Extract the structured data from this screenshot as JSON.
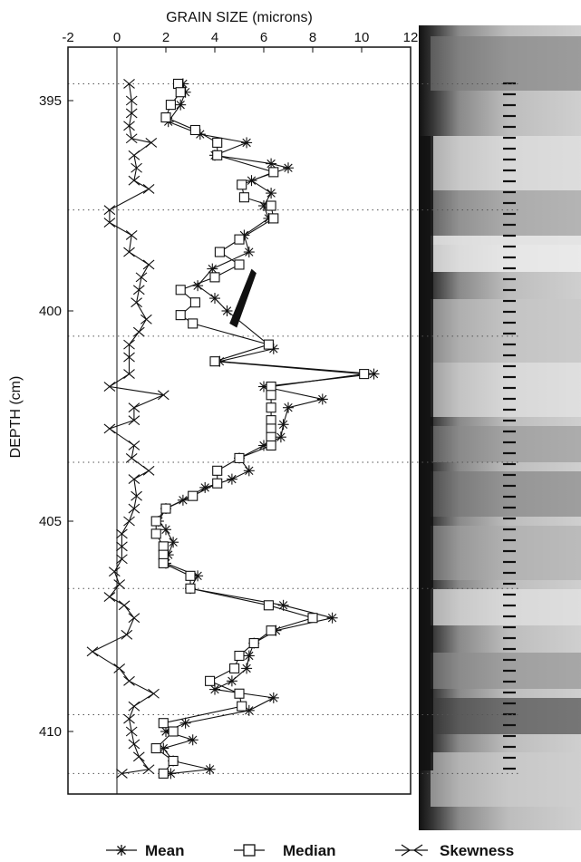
{
  "chart_data": {
    "type": "line",
    "title": "GRAIN SIZE  (microns)",
    "xlabel": "GRAIN SIZE  (microns)",
    "ylabel": "DEPTH (cm)",
    "xlim": [
      -2,
      12
    ],
    "ylim": [
      394.3,
      411.2
    ],
    "x_ticks": [
      "-2",
      "0",
      "2",
      "4",
      "6",
      "8",
      "10",
      "12"
    ],
    "y_ticks": [
      "395",
      "400",
      "405",
      "410"
    ],
    "y_inverted": true,
    "grid": "dotted horizontal lines at selected depths",
    "legend_position": "bottom",
    "series": [
      {
        "name": "Mean",
        "marker": "asterisk",
        "points": [
          [
            2.7,
            394.6
          ],
          [
            2.8,
            394.8
          ],
          [
            2.6,
            395.1
          ],
          [
            2.1,
            395.5
          ],
          [
            3.4,
            395.8
          ],
          [
            5.3,
            396.0
          ],
          [
            4.0,
            396.3
          ],
          [
            6.3,
            396.5
          ],
          [
            7.0,
            396.6
          ],
          [
            5.5,
            396.9
          ],
          [
            6.3,
            397.2
          ],
          [
            6.0,
            397.5
          ],
          [
            6.2,
            397.8
          ],
          [
            5.2,
            398.2
          ],
          [
            5.4,
            398.6
          ],
          [
            3.9,
            399.0
          ],
          [
            3.3,
            399.4
          ],
          [
            4.0,
            399.7
          ],
          [
            4.5,
            400.0
          ],
          [
            6.4,
            400.9
          ],
          [
            4.2,
            401.2
          ],
          [
            10.5,
            401.5
          ],
          [
            6.0,
            401.8
          ],
          [
            8.4,
            402.1
          ],
          [
            7.0,
            402.3
          ],
          [
            6.8,
            402.7
          ],
          [
            6.7,
            403.0
          ],
          [
            6.0,
            403.2
          ],
          [
            5.0,
            403.5
          ],
          [
            5.4,
            403.8
          ],
          [
            4.7,
            404.0
          ],
          [
            3.6,
            404.2
          ],
          [
            2.7,
            404.5
          ],
          [
            2.0,
            404.7
          ],
          [
            1.7,
            405.0
          ],
          [
            2.0,
            405.2
          ],
          [
            2.3,
            405.5
          ],
          [
            2.1,
            405.8
          ],
          [
            2.0,
            406.0
          ],
          [
            3.3,
            406.3
          ],
          [
            3.0,
            406.6
          ],
          [
            6.8,
            407.0
          ],
          [
            8.8,
            407.3
          ],
          [
            6.5,
            407.6
          ],
          [
            5.6,
            407.9
          ],
          [
            5.4,
            408.2
          ],
          [
            5.3,
            408.5
          ],
          [
            4.7,
            408.8
          ],
          [
            4.0,
            409.0
          ],
          [
            6.4,
            409.2
          ],
          [
            5.4,
            409.5
          ],
          [
            2.8,
            409.8
          ],
          [
            2.0,
            410.0
          ],
          [
            3.1,
            410.2
          ],
          [
            1.9,
            410.4
          ],
          [
            2.3,
            410.7
          ],
          [
            3.8,
            410.9
          ],
          [
            2.2,
            411.0
          ]
        ]
      },
      {
        "name": "Median",
        "marker": "square",
        "points": [
          [
            2.5,
            394.6
          ],
          [
            2.6,
            394.8
          ],
          [
            2.2,
            395.1
          ],
          [
            2.0,
            395.4
          ],
          [
            3.2,
            395.7
          ],
          [
            4.1,
            396.0
          ],
          [
            4.1,
            396.3
          ],
          [
            6.4,
            396.7
          ],
          [
            5.1,
            397.0
          ],
          [
            5.2,
            397.3
          ],
          [
            6.3,
            397.5
          ],
          [
            6.4,
            397.8
          ],
          [
            5.0,
            398.3
          ],
          [
            4.2,
            398.6
          ],
          [
            5.0,
            398.9
          ],
          [
            4.0,
            399.2
          ],
          [
            2.6,
            399.5
          ],
          [
            3.2,
            399.8
          ],
          [
            2.6,
            400.1
          ],
          [
            3.1,
            400.3
          ],
          [
            6.2,
            400.8
          ],
          [
            4.0,
            401.2
          ],
          [
            10.1,
            401.5
          ],
          [
            6.3,
            401.8
          ],
          [
            6.3,
            402.0
          ],
          [
            6.3,
            402.3
          ],
          [
            6.3,
            402.6
          ],
          [
            6.3,
            402.8
          ],
          [
            6.3,
            403.0
          ],
          [
            6.3,
            403.2
          ],
          [
            5.0,
            403.5
          ],
          [
            4.1,
            403.8
          ],
          [
            4.1,
            404.1
          ],
          [
            3.1,
            404.4
          ],
          [
            2.0,
            404.7
          ],
          [
            1.6,
            405.0
          ],
          [
            1.6,
            405.3
          ],
          [
            1.9,
            405.6
          ],
          [
            1.9,
            405.8
          ],
          [
            1.9,
            406.0
          ],
          [
            3.0,
            406.3
          ],
          [
            3.0,
            406.6
          ],
          [
            6.2,
            407.0
          ],
          [
            8.0,
            407.3
          ],
          [
            6.3,
            407.6
          ],
          [
            5.6,
            407.9
          ],
          [
            5.0,
            408.2
          ],
          [
            4.8,
            408.5
          ],
          [
            3.8,
            408.8
          ],
          [
            5.0,
            409.1
          ],
          [
            5.1,
            409.4
          ],
          [
            1.9,
            409.8
          ],
          [
            2.3,
            410.0
          ],
          [
            1.6,
            410.4
          ],
          [
            2.3,
            410.7
          ],
          [
            1.9,
            411.0
          ]
        ]
      },
      {
        "name": "Skewness",
        "marker": "arrow",
        "points": [
          [
            0.5,
            394.6
          ],
          [
            0.6,
            395.0
          ],
          [
            0.6,
            395.3
          ],
          [
            0.5,
            395.6
          ],
          [
            0.6,
            395.9
          ],
          [
            1.4,
            396.0
          ],
          [
            0.7,
            396.3
          ],
          [
            0.8,
            396.6
          ],
          [
            0.7,
            396.9
          ],
          [
            1.3,
            397.1
          ],
          [
            -0.3,
            397.6
          ],
          [
            -0.3,
            397.9
          ],
          [
            0.6,
            398.2
          ],
          [
            0.5,
            398.6
          ],
          [
            1.3,
            398.9
          ],
          [
            1.0,
            399.2
          ],
          [
            0.9,
            399.5
          ],
          [
            0.8,
            399.8
          ],
          [
            1.2,
            400.2
          ],
          [
            0.9,
            400.5
          ],
          [
            0.5,
            400.8
          ],
          [
            0.5,
            401.1
          ],
          [
            0.5,
            401.5
          ],
          [
            -0.3,
            401.8
          ],
          [
            1.9,
            402.0
          ],
          [
            0.7,
            402.3
          ],
          [
            0.7,
            402.6
          ],
          [
            -0.3,
            402.8
          ],
          [
            0.7,
            403.2
          ],
          [
            0.6,
            403.5
          ],
          [
            1.3,
            403.8
          ],
          [
            0.7,
            404.0
          ],
          [
            0.8,
            404.4
          ],
          [
            0.7,
            404.7
          ],
          [
            0.5,
            405.0
          ],
          [
            0.2,
            405.3
          ],
          [
            0.2,
            405.6
          ],
          [
            0.2,
            405.9
          ],
          [
            -0.1,
            406.2
          ],
          [
            0.1,
            406.5
          ],
          [
            -0.3,
            406.8
          ],
          [
            0.3,
            407.0
          ],
          [
            0.7,
            407.3
          ],
          [
            0.4,
            407.7
          ],
          [
            -1.0,
            408.1
          ],
          [
            0.1,
            408.5
          ],
          [
            0.5,
            408.8
          ],
          [
            1.5,
            409.1
          ],
          [
            0.7,
            409.4
          ],
          [
            0.5,
            409.7
          ],
          [
            0.6,
            410.0
          ],
          [
            0.7,
            410.3
          ],
          [
            0.9,
            410.6
          ],
          [
            1.3,
            410.9
          ],
          [
            0.2,
            411.0
          ]
        ]
      }
    ],
    "annotations": [
      "black diagonal smear between 4.5 and 5.5 microns near 399–400 cm"
    ]
  },
  "legend": {
    "mean_label": "Mean",
    "median_label": "Median",
    "skewness_label": "Skewness"
  },
  "colors": {
    "ink": "#111111",
    "grid": "#555555",
    "photo_dark": "#1e1e1e",
    "photo_light": "#d8d8d8"
  }
}
